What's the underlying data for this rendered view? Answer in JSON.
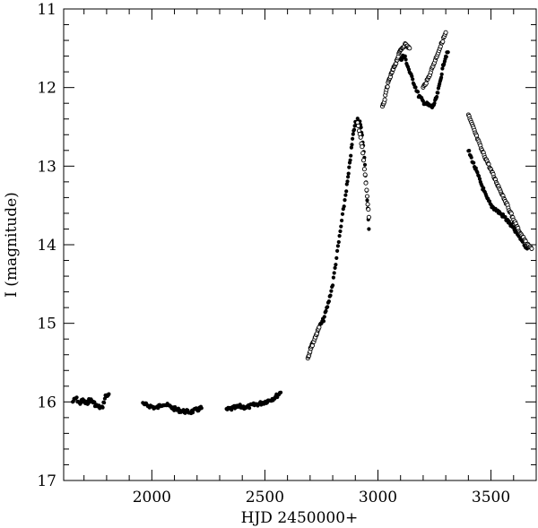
{
  "chart_data": {
    "type": "scatter",
    "title": "",
    "xlabel": "HJD 2450000+",
    "ylabel": "I (magnitude)",
    "xlim": [
      1610,
      3700
    ],
    "ylim": [
      17,
      11
    ],
    "y_inverted": true,
    "grid": false,
    "legend": "none",
    "x_ticks": [
      2000,
      2500,
      3000,
      3500
    ],
    "x_tick_labels": [
      "2000",
      "2500",
      "3000",
      "3500"
    ],
    "y_ticks": [
      11,
      12,
      13,
      14,
      15,
      16,
      17
    ],
    "y_tick_labels": [
      "11",
      "12",
      "13",
      "14",
      "15",
      "16",
      "17"
    ],
    "colors": {
      "filled": "#000000",
      "open_edge": "#000000",
      "open_fill": "#ffffff"
    },
    "series": [
      {
        "marker": "filled",
        "segments": [
          {
            "x": [
              1650,
              1665,
              1680,
              1695,
              1710,
              1725,
              1740,
              1755,
              1780,
              1795,
              1810
            ],
            "y": [
              16.0,
              15.95,
              16.02,
              15.98,
              16.03,
              15.97,
              16.0,
              16.05,
              16.08,
              15.93,
              15.9
            ]
          },
          {
            "x": [
              1960,
              1990,
              2020,
              2050,
              2080,
              2110,
              2140,
              2170,
              2200,
              2220
            ],
            "y": [
              16.03,
              16.05,
              16.08,
              16.02,
              16.06,
              16.1,
              16.12,
              16.13,
              16.1,
              16.08
            ]
          },
          {
            "x": [
              2330,
              2360,
              2390,
              2420,
              2450,
              2480,
              2510,
              2540,
              2570
            ],
            "y": [
              16.1,
              16.08,
              16.06,
              16.07,
              16.04,
              16.02,
              15.99,
              15.95,
              15.88
            ]
          },
          {
            "x": [
              2700,
              2720,
              2740,
              2760,
              2780,
              2800,
              2820,
              2840,
              2860,
              2870,
              2880,
              2890,
              2900,
              2910,
              2920,
              2930,
              2940,
              2950,
              2960
            ],
            "y": [
              15.3,
              15.2,
              15.05,
              14.95,
              14.75,
              14.5,
              14.1,
              13.7,
              13.3,
              13.1,
              12.85,
              12.6,
              12.45,
              12.4,
              12.45,
              12.6,
              12.9,
              13.3,
              13.8
            ]
          },
          {
            "x": [
              3100,
              3110,
              3120,
              3140,
              3160,
              3180,
              3200,
              3220,
              3240,
              3250,
              3260,
              3270,
              3280,
              3290,
              3300,
              3310
            ],
            "y": [
              11.65,
              11.6,
              11.62,
              11.8,
              11.95,
              12.1,
              12.18,
              12.22,
              12.25,
              12.2,
              12.12,
              12.0,
              11.85,
              11.7,
              11.6,
              11.55
            ]
          },
          {
            "x": [
              3400,
              3420,
              3440,
              3460,
              3480,
              3500,
              3520,
              3540,
              3560,
              3580,
              3600,
              3620,
              3640,
              3660
            ],
            "y": [
              12.8,
              12.95,
              13.1,
              13.25,
              13.4,
              13.5,
              13.55,
              13.6,
              13.65,
              13.72,
              13.8,
              13.88,
              13.95,
              14.05
            ]
          }
        ]
      },
      {
        "marker": "open",
        "segments": [
          {
            "x": [
              2690,
              2700,
              2720,
              2740
            ],
            "y": [
              15.45,
              15.35,
              15.2,
              15.05
            ]
          },
          {
            "x": [
              2910,
              2930,
              2950,
              2960
            ],
            "y": [
              12.45,
              12.75,
              13.3,
              13.65
            ]
          },
          {
            "x": [
              3020,
              3030,
              3040,
              3050,
              3060,
              3070,
              3080,
              3090,
              3100,
              3120,
              3140
            ],
            "y": [
              12.25,
              12.15,
              12.0,
              11.9,
              11.82,
              11.75,
              11.68,
              11.6,
              11.52,
              11.45,
              11.5
            ]
          },
          {
            "x": [
              3200,
              3220,
              3240,
              3260,
              3280,
              3300
            ],
            "y": [
              12.0,
              11.9,
              11.75,
              11.6,
              11.45,
              11.3
            ]
          },
          {
            "x": [
              3400,
              3420,
              3440,
              3460,
              3480,
              3500,
              3520,
              3540,
              3560,
              3580,
              3600,
              3620,
              3640,
              3660,
              3680
            ],
            "y": [
              12.35,
              12.5,
              12.65,
              12.8,
              12.92,
              13.05,
              13.18,
              13.3,
              13.42,
              13.55,
              13.68,
              13.8,
              13.9,
              14.0,
              14.05
            ]
          }
        ]
      }
    ]
  }
}
